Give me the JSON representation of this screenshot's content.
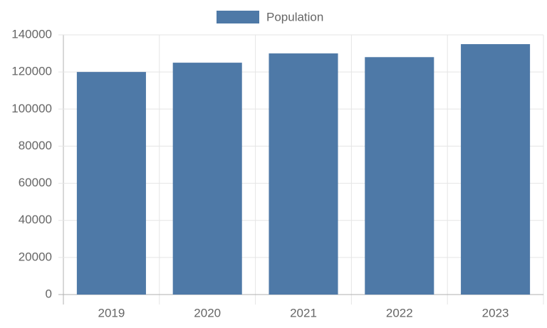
{
  "chart_data": {
    "type": "bar",
    "categories": [
      "2019",
      "2020",
      "2021",
      "2022",
      "2023"
    ],
    "series": [
      {
        "name": "Population",
        "color": "#4e79a7",
        "values": [
          120000,
          125000,
          130000,
          128000,
          135000
        ]
      }
    ],
    "ylim": [
      0,
      140000
    ],
    "yticks": [
      0,
      20000,
      40000,
      60000,
      80000,
      100000,
      120000,
      140000
    ],
    "grid": true,
    "legend": "top"
  }
}
